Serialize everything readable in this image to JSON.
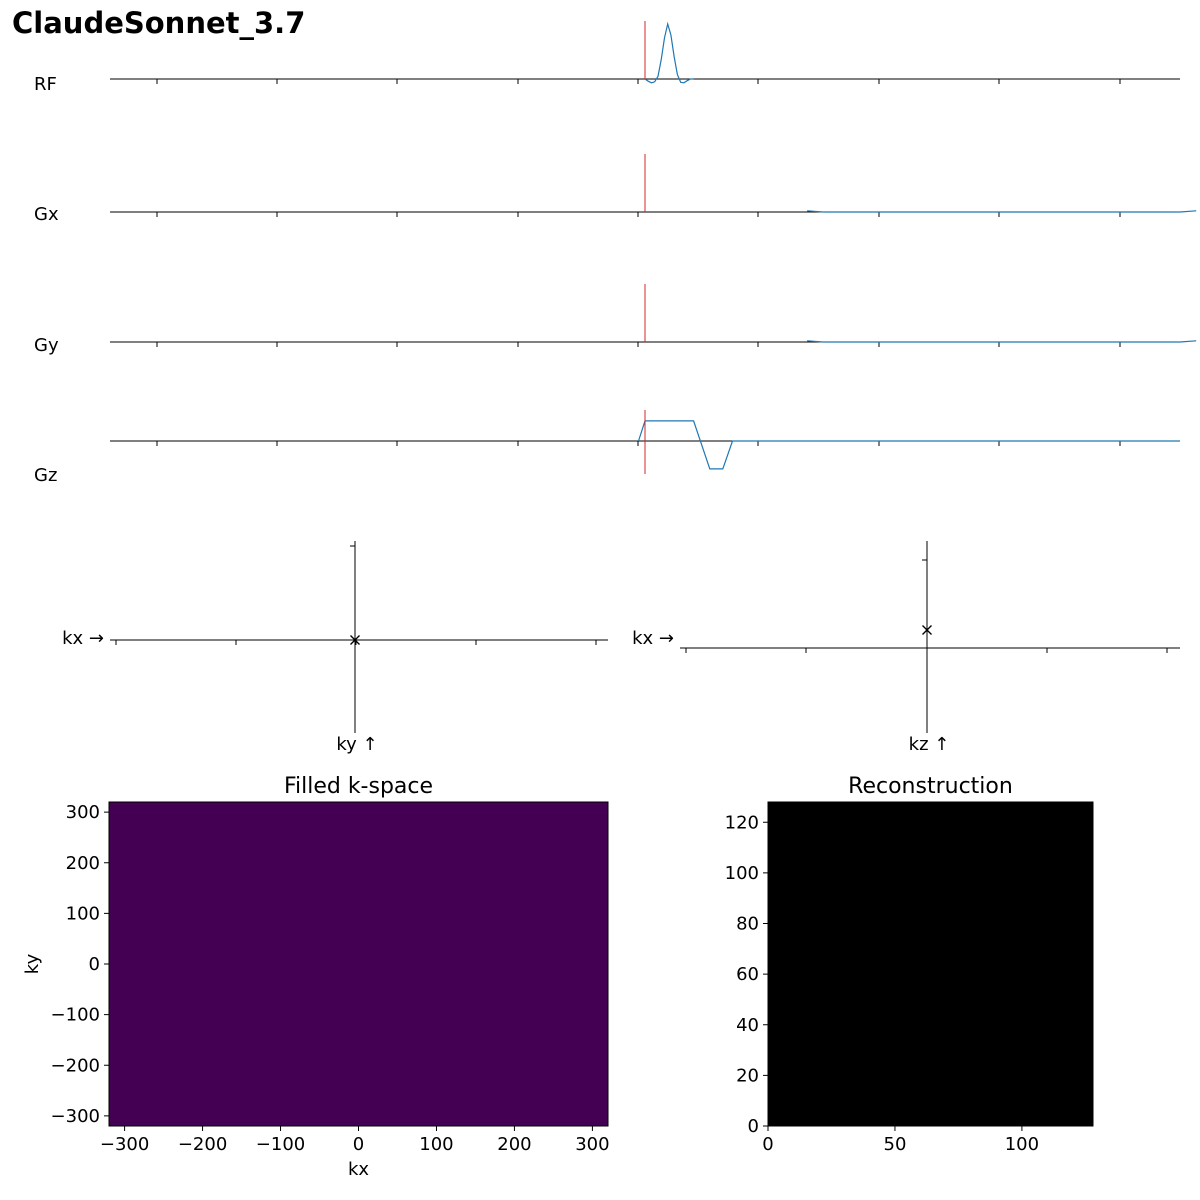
{
  "title": "ClaudeSonnet_3.7",
  "colors": {
    "trace": "#1f77b4",
    "marker": "#d62728",
    "axis": "#000000",
    "kspace_fill": "#440154",
    "recon_fill": "#000000"
  },
  "chart_data": [
    {
      "type": "line",
      "name": "sequence-diagram",
      "channels": [
        {
          "label": "RF",
          "description_points": [
            [
              0.0,
              0
            ],
            [
              0.002,
              -0.04
            ],
            [
              0.004,
              -0.07
            ],
            [
              0.006,
              -0.05
            ],
            [
              0.008,
              0.05
            ],
            [
              0.01,
              0.35
            ],
            [
              0.012,
              0.75
            ],
            [
              0.014,
              1.0
            ],
            [
              0.016,
              0.8
            ],
            [
              0.018,
              0.4
            ],
            [
              0.02,
              0.08
            ],
            [
              0.022,
              -0.06
            ],
            [
              0.024,
              -0.07
            ],
            [
              0.026,
              -0.03
            ],
            [
              0.028,
              0.0
            ],
            [
              0.03,
              0.0
            ]
          ]
        },
        {
          "label": "Gx",
          "description_points": [
            [
              0.1,
              0.02
            ],
            [
              0.11,
              0.0
            ],
            [
              0.33,
              0.0
            ],
            [
              0.34,
              0.02
            ]
          ]
        },
        {
          "label": "Gy",
          "description_points": [
            [
              0.1,
              0.02
            ],
            [
              0.11,
              0.0
            ],
            [
              0.33,
              0.0
            ],
            [
              0.34,
              0.02
            ]
          ]
        },
        {
          "label": "Gz",
          "description_points": [
            [
              -0.004,
              0
            ],
            [
              0.0,
              0.65
            ],
            [
              0.03,
              0.65
            ],
            [
              0.04,
              -0.9
            ],
            [
              0.044,
              -0.9
            ],
            [
              0.048,
              -0.9
            ],
            [
              0.054,
              0
            ],
            [
              0.33,
              0
            ]
          ]
        }
      ],
      "marker_time": 0,
      "xlim": [
        -0.33,
        0.33
      ]
    },
    {
      "type": "scatter",
      "name": "kx-ky-trajectory",
      "xlabel": "kx →",
      "ylabel": "ky ↑",
      "points": [
        [
          0,
          0
        ]
      ],
      "marker": "x"
    },
    {
      "type": "scatter",
      "name": "kx-kz-trajectory",
      "xlabel": "kx →",
      "ylabel": "kz ↑",
      "points": [
        [
          0,
          0.18
        ]
      ],
      "marker": "x"
    },
    {
      "type": "heatmap",
      "name": "filled-k-space",
      "title": "Filled k-space",
      "xlabel": "kx",
      "ylabel": "ky",
      "xlim": [
        -320,
        320
      ],
      "ylim": [
        -320,
        320
      ],
      "xticks": [
        -300,
        -200,
        -100,
        0,
        100,
        200,
        300
      ],
      "yticks": [
        -300,
        -200,
        -100,
        0,
        100,
        200,
        300
      ],
      "value": "uniform"
    },
    {
      "type": "heatmap",
      "name": "reconstruction",
      "title": "Reconstruction",
      "xlabel": "",
      "ylabel": "",
      "xlim": [
        0,
        128
      ],
      "ylim": [
        0,
        128
      ],
      "xticks": [
        0,
        50,
        100
      ],
      "yticks": [
        0,
        20,
        40,
        60,
        80,
        100,
        120
      ],
      "value": "uniform"
    }
  ]
}
